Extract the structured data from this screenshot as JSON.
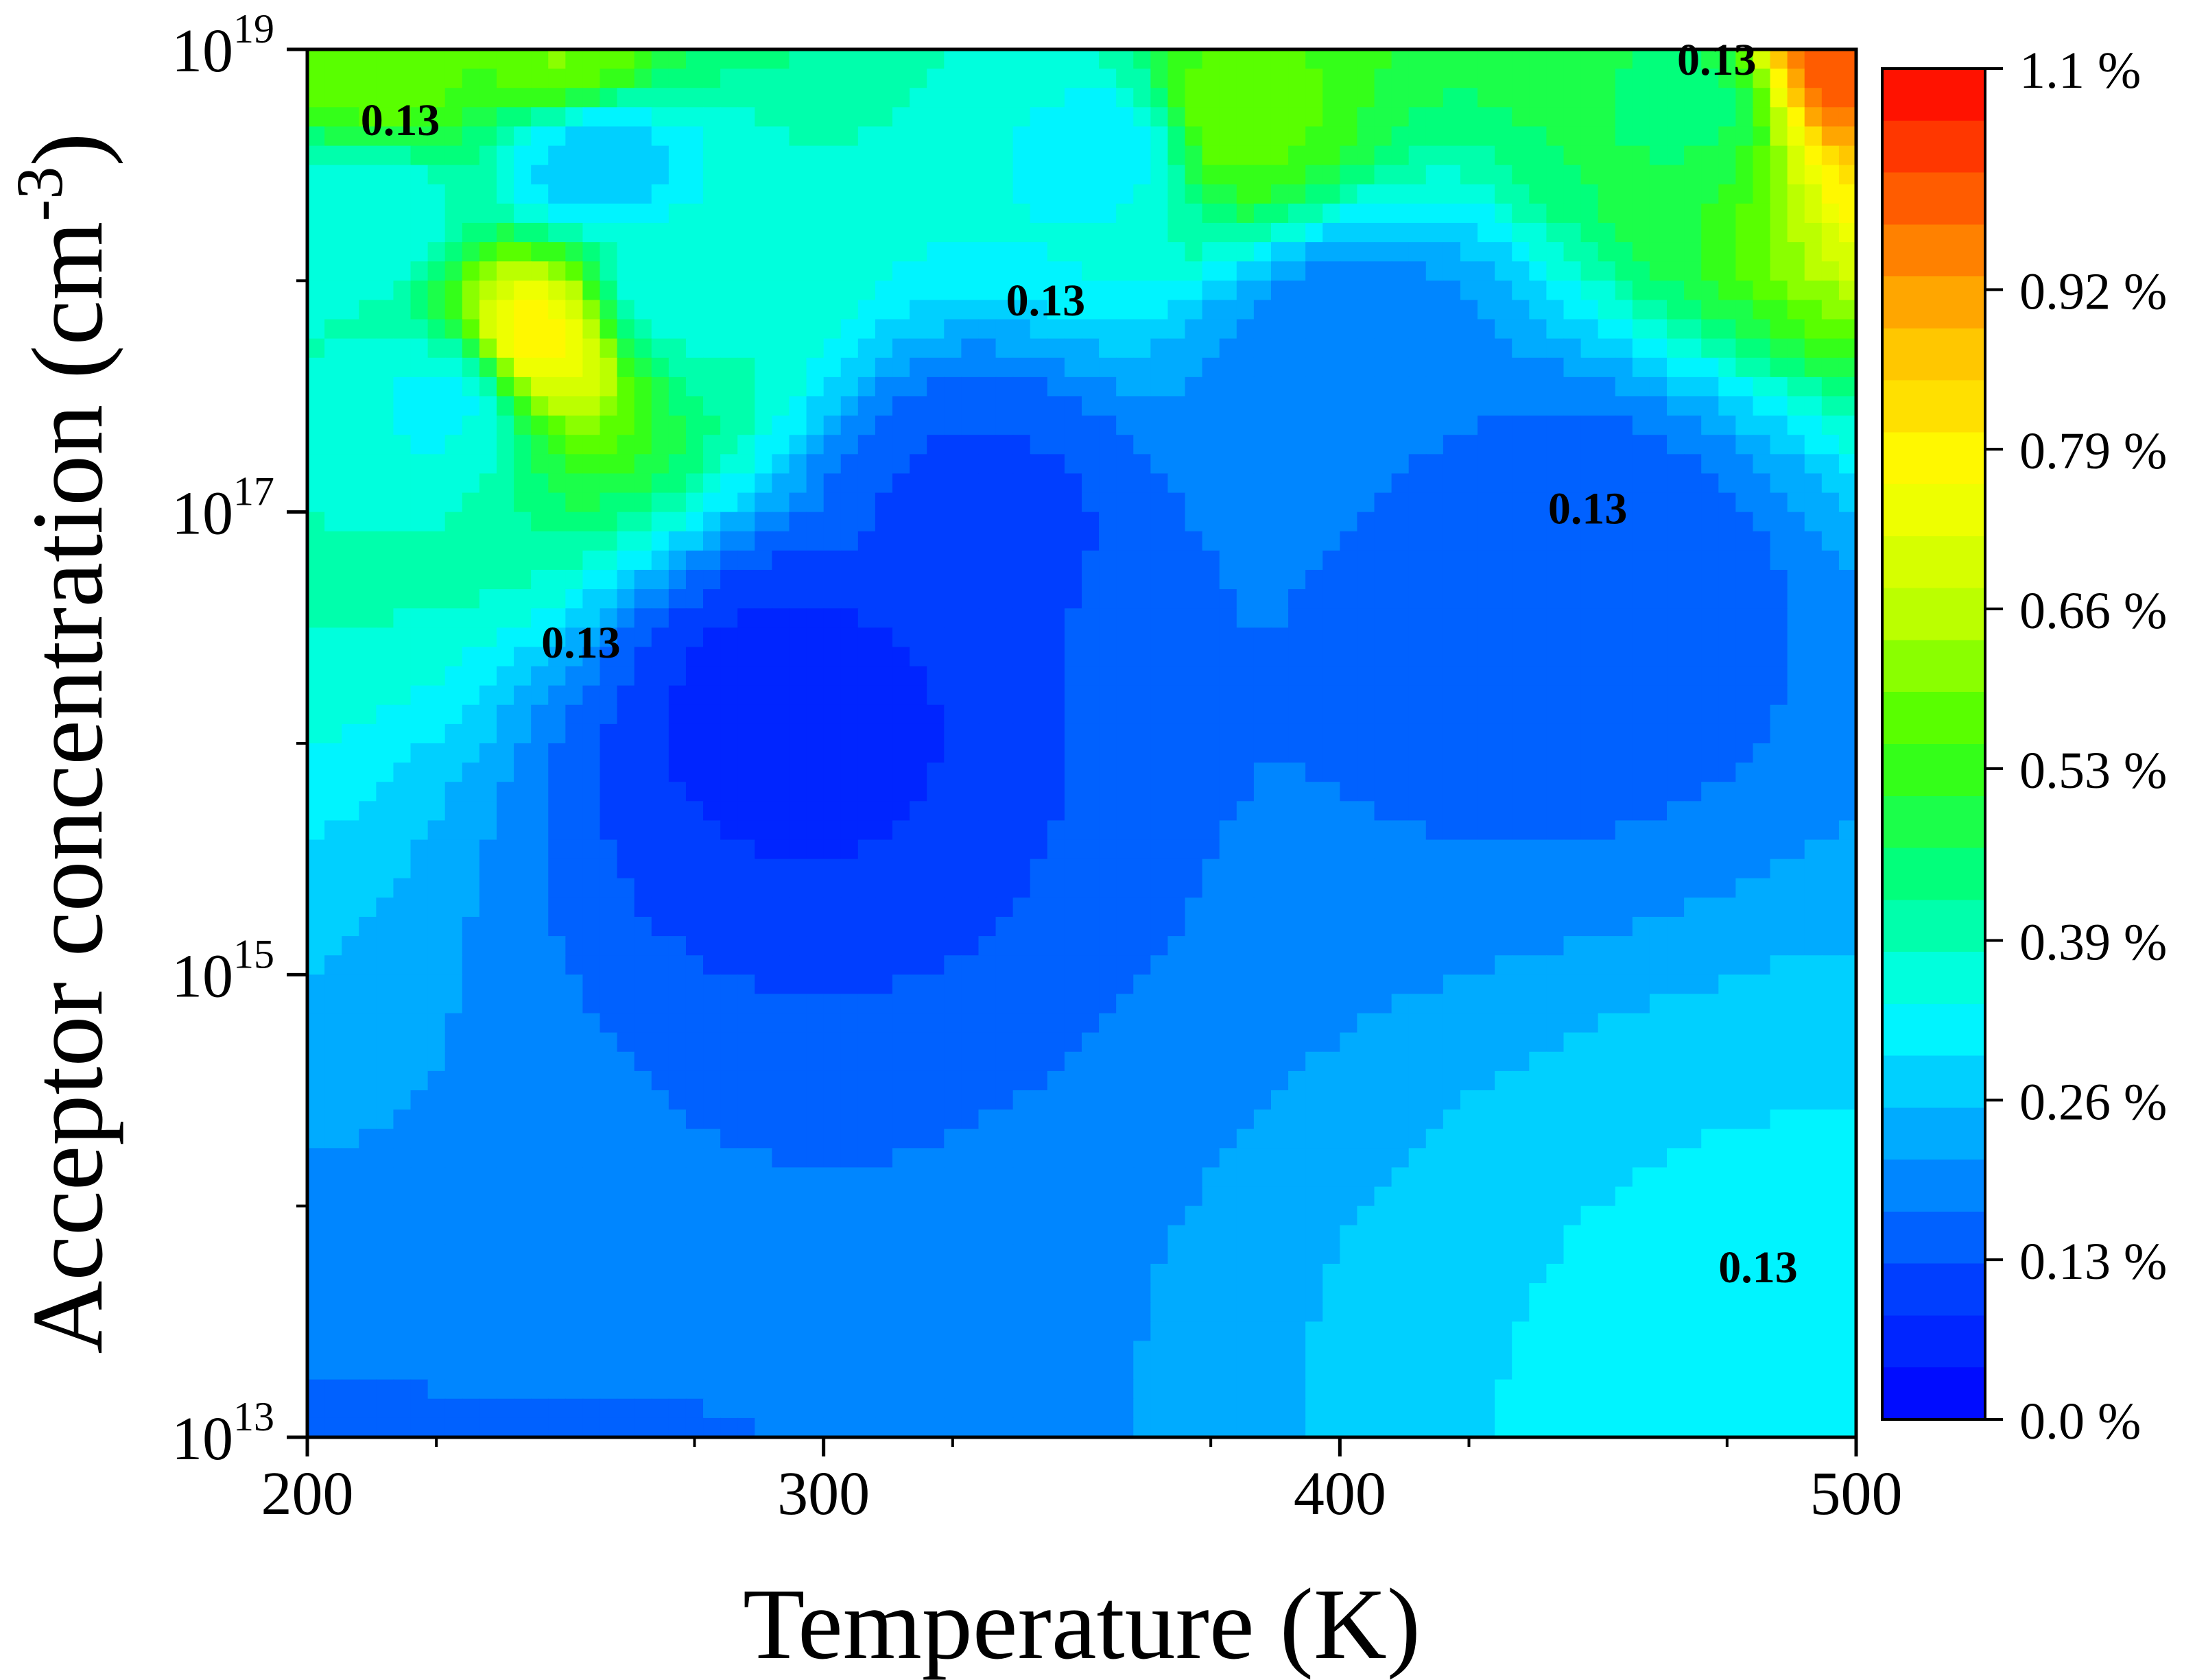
{
  "chart_data": {
    "type": "heatmap",
    "xlabel": "Temperature (K)",
    "ylabel": {
      "main": "Acceptor concentration (cm",
      "sup": "-3",
      "close": ")"
    },
    "x_range": [
      200,
      500
    ],
    "x_ticks": [
      {
        "value": 200,
        "label": "200"
      },
      {
        "value": 300,
        "label": "300"
      },
      {
        "value": 400,
        "label": "400"
      },
      {
        "value": 500,
        "label": "500"
      }
    ],
    "y_scale": "log",
    "y_range_exponent": [
      13,
      19
    ],
    "y_ticks": [
      {
        "exp": 13,
        "base": "10",
        "sup": "13"
      },
      {
        "exp": 15,
        "base": "10",
        "sup": "15"
      },
      {
        "exp": 17,
        "base": "10",
        "sup": "17"
      },
      {
        "exp": 19,
        "base": "10",
        "sup": "19"
      }
    ],
    "colorbar": {
      "range": [
        0.0,
        1.1
      ],
      "unit": "%",
      "ticks": [
        {
          "value": 1.1,
          "label": "1.1 %"
        },
        {
          "value": 0.92,
          "label": "0.92 %"
        },
        {
          "value": 0.79,
          "label": "0.79 %"
        },
        {
          "value": 0.66,
          "label": "0.66 %"
        },
        {
          "value": 0.53,
          "label": "0.53 %"
        },
        {
          "value": 0.39,
          "label": "0.39 %"
        },
        {
          "value": 0.26,
          "label": "0.26 %"
        },
        {
          "value": 0.13,
          "label": "0.13 %"
        },
        {
          "value": 0.0,
          "label": "0.0 %"
        }
      ],
      "colors": [
        "#0000ff",
        "#0040ff",
        "#00a0ff",
        "#00ffff",
        "#00ff80",
        "#40ff00",
        "#c0ff00",
        "#ffff00",
        "#ffc000",
        "#ff6000",
        "#ff0000"
      ]
    },
    "field_points": [
      {
        "x": 245,
        "y_exp": 17.75,
        "value": 0.8
      },
      {
        "x": 228,
        "y_exp": 17.5,
        "value": 0.32
      },
      {
        "x": 268,
        "y_exp": 17.95,
        "value": 0.35
      },
      {
        "x": 215,
        "y_exp": 18.9,
        "value": 0.58
      },
      {
        "x": 250,
        "y_exp": 18.95,
        "value": 0.6
      },
      {
        "x": 212,
        "y_exp": 18.3,
        "value": 0.34
      },
      {
        "x": 255,
        "y_exp": 18.55,
        "value": 0.25
      },
      {
        "x": 375,
        "y_exp": 18.7,
        "value": 0.6
      },
      {
        "x": 360,
        "y_exp": 18.6,
        "value": 0.3
      },
      {
        "x": 470,
        "y_exp": 18.8,
        "value": 0.45
      },
      {
        "x": 497,
        "y_exp": 18.97,
        "value": 1.0
      },
      {
        "x": 400,
        "y_exp": 17.7,
        "value": 0.18
      },
      {
        "x": 330,
        "y_exp": 17.0,
        "value": 0.12
      },
      {
        "x": 295,
        "y_exp": 16.2,
        "value": 0.07
      },
      {
        "x": 440,
        "y_exp": 16.8,
        "value": 0.13
      },
      {
        "x": 490,
        "y_exp": 13.4,
        "value": 0.3
      },
      {
        "x": 500,
        "y_exp": 13.0,
        "value": 0.32
      }
    ],
    "contour_level": 0.13,
    "contour_labels": [
      {
        "text": "0.13",
        "x": 218,
        "y_exp": 18.63
      },
      {
        "text": "0.13",
        "x": 473,
        "y_exp": 18.89
      },
      {
        "text": "0.13",
        "x": 343,
        "y_exp": 17.85
      },
      {
        "text": "0.13",
        "x": 448,
        "y_exp": 16.95
      },
      {
        "text": "0.13",
        "x": 253,
        "y_exp": 16.37
      },
      {
        "text": "0.13",
        "x": 481,
        "y_exp": 13.67
      }
    ]
  }
}
